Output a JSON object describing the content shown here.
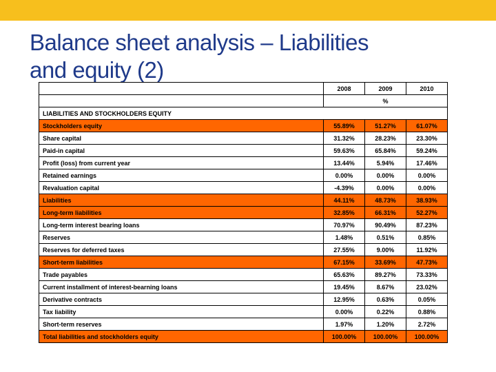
{
  "slide": {
    "title_line1": "Balance sheet analysis – Liabilities",
    "title_line2": "and equity (2)"
  },
  "colors": {
    "accent_bar": "#f7bf1d",
    "highlight_row": "#ff6600",
    "title_text": "#1f3a8a"
  },
  "table": {
    "years": [
      "2008",
      "2009",
      "2010"
    ],
    "unit": "%",
    "section_title": "LIABILITIES AND STOCKHOLDERS EQUITY",
    "rows": [
      {
        "label": "Stockholders equity",
        "v2008": "55.89%",
        "v2009": "51.27%",
        "v2010": "61.07%",
        "highlight": true
      },
      {
        "label": "Share capital",
        "v2008": "31.32%",
        "v2009": "28.23%",
        "v2010": "23.30%",
        "highlight": false
      },
      {
        "label": "Paid-in capital",
        "v2008": "59.63%",
        "v2009": "65.84%",
        "v2010": "59.24%",
        "highlight": false
      },
      {
        "label": "Profit (loss) from current year",
        "v2008": "13.44%",
        "v2009": "5.94%",
        "v2010": "17.46%",
        "highlight": false
      },
      {
        "label": "Retained earnings",
        "v2008": "0.00%",
        "v2009": "0.00%",
        "v2010": "0.00%",
        "highlight": false
      },
      {
        "label": "Revaluation capital",
        "v2008": "-4.39%",
        "v2009": "0.00%",
        "v2010": "0.00%",
        "highlight": false
      },
      {
        "label": "Liabilities",
        "v2008": "44.11%",
        "v2009": "48.73%",
        "v2010": "38.93%",
        "highlight": true
      },
      {
        "label": "Long-term liabilities",
        "v2008": "32.85%",
        "v2009": "66.31%",
        "v2010": "52.27%",
        "highlight": true
      },
      {
        "label": "Long-term interest bearing loans",
        "v2008": "70.97%",
        "v2009": "90.49%",
        "v2010": "87.23%",
        "highlight": false
      },
      {
        "label": "Reserves",
        "v2008": "1.48%",
        "v2009": "0.51%",
        "v2010": "0.85%",
        "highlight": false
      },
      {
        "label": "Reserves for deferred taxes",
        "v2008": "27.55%",
        "v2009": "9.00%",
        "v2010": "11.92%",
        "highlight": false
      },
      {
        "label": "Short-term liabilities",
        "v2008": "67.15%",
        "v2009": "33.69%",
        "v2010": "47.73%",
        "highlight": true
      },
      {
        "label": "Trade payables",
        "v2008": "65.63%",
        "v2009": "89.27%",
        "v2010": "73.33%",
        "highlight": false
      },
      {
        "label": "Current installment of interest-bearning loans",
        "v2008": "19.45%",
        "v2009": "8.67%",
        "v2010": "23.02%",
        "highlight": false
      },
      {
        "label": "Derivative contracts",
        "v2008": "12.95%",
        "v2009": "0.63%",
        "v2010": "0.05%",
        "highlight": false
      },
      {
        "label": "Tax liability",
        "v2008": "0.00%",
        "v2009": "0.22%",
        "v2010": "0.88%",
        "highlight": false
      },
      {
        "label": "Short-term reserves",
        "v2008": "1.97%",
        "v2009": "1.20%",
        "v2010": "2.72%",
        "highlight": false
      },
      {
        "label": "Total liabilities and stockholders equity",
        "v2008": "100.00%",
        "v2009": "100.00%",
        "v2010": "100.00%",
        "highlight": true
      }
    ]
  }
}
